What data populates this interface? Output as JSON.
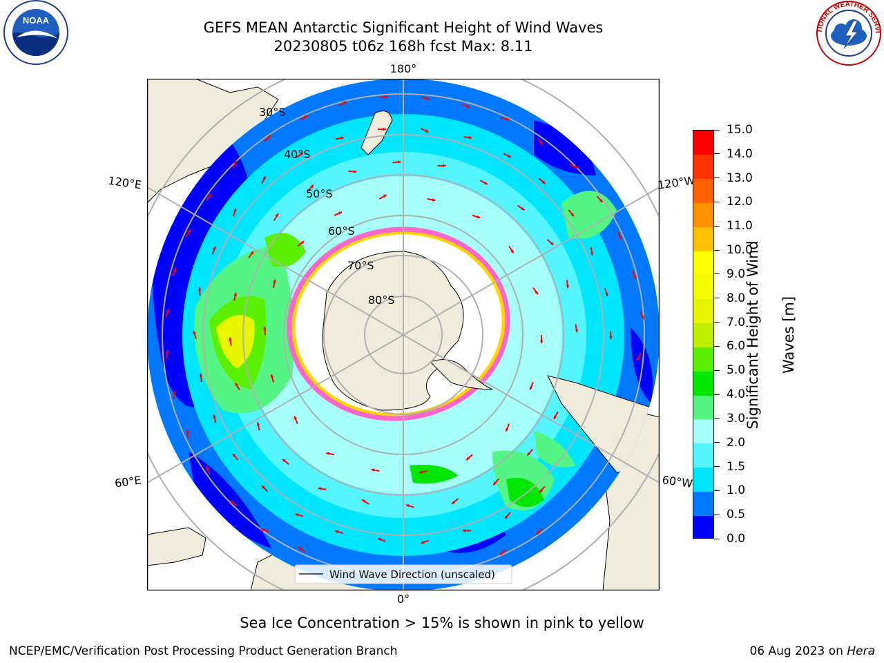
{
  "title": {
    "line1": "GEFS MEAN Antarctic Significant Height of Wind Waves",
    "line2": "20230805 t06z 168h fcst   Max: 8.11"
  },
  "map": {
    "longitude_labels": {
      "top": "180°",
      "bottom": "0°",
      "upper_left": "120°E",
      "upper_right": "120°W",
      "lower_left": "60°E",
      "lower_right": "60°W"
    },
    "latitude_labels": [
      "30°S",
      "40°S",
      "50°S",
      "60°S",
      "70°S",
      "80°S"
    ],
    "legend_label": "Wind Wave Direction (unscaled)",
    "land_color": "#efecdc",
    "arrow_color": "#ff0000"
  },
  "colorbar": {
    "title_line1": "Significant Height of Wind",
    "title_line2": "Waves [m]",
    "tick_labels": [
      "0.0",
      "0.5",
      "1.0",
      "1.5",
      "2.0",
      "3.0",
      "4.0",
      "5.0",
      "6.0",
      "7.0",
      "8.0",
      "9.0",
      "10.0",
      "11.0",
      "12.0",
      "13.0",
      "14.0",
      "15.0"
    ],
    "colors": [
      "#0000ff",
      "#0078ff",
      "#00e6ff",
      "#55f5ff",
      "#a6fff9",
      "#55f585",
      "#00e600",
      "#5bf000",
      "#c0f000",
      "#e6f500",
      "#f5fa00",
      "#ffff00",
      "#ffc000",
      "#ff9000",
      "#ff6000",
      "#ff3300",
      "#ff0000"
    ]
  },
  "notes": {
    "sea_ice": "Sea Ice Concentration > 15% is shown in pink to yellow",
    "footer_left": "NCEP/EMC/Verification Post Processing Product Generation Branch",
    "footer_date": "06 Aug 2023 on ",
    "footer_host": "Hera"
  },
  "logos": {
    "noaa_text": "NOAA",
    "nws_text": "NATIONAL WEATHER SERVICE"
  }
}
